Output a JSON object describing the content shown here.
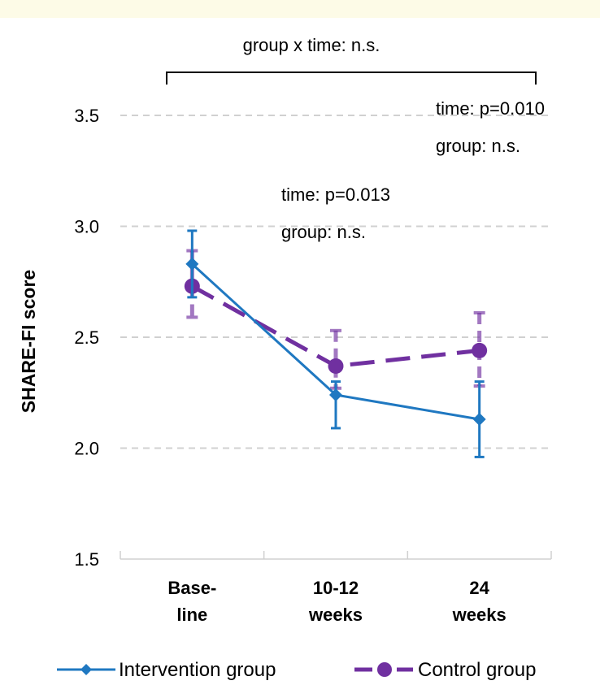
{
  "chart_data": {
    "type": "line",
    "title": "",
    "xlabel": "",
    "ylabel": "SHARE-FI score",
    "categories": [
      [
        "Base-",
        "line"
      ],
      [
        "10-12",
        "weeks"
      ],
      [
        "24",
        "weeks"
      ]
    ],
    "ylim": [
      1.5,
      3.5
    ],
    "yticks": [
      "1.5",
      "2.0",
      "2.5",
      "3.0",
      "3.5"
    ],
    "ytick_values": [
      1.5,
      2.0,
      2.5,
      3.0,
      3.5
    ],
    "grid": true,
    "legend_position": "bottom",
    "series": [
      {
        "name": "Intervention group",
        "values": [
          2.83,
          2.24,
          2.13
        ],
        "error_low": [
          2.68,
          2.09,
          1.96
        ],
        "error_high": [
          2.98,
          2.3,
          2.3
        ],
        "color": "#1f78c1",
        "marker": "diamond",
        "line_style": "solid"
      },
      {
        "name": "Control group",
        "values": [
          2.73,
          2.37,
          2.44
        ],
        "error_low": [
          2.59,
          2.27,
          2.28
        ],
        "error_high": [
          2.89,
          2.53,
          2.61
        ],
        "color": "#7030a0",
        "marker": "circle",
        "line_style": "dashed"
      }
    ],
    "annotations": {
      "bracket": "group x time: n.s.",
      "mid_time": "time: p=0.013",
      "mid_group": "group: n.s.",
      "end_time": "time: p=0.010",
      "end_group": "group: n.s."
    }
  }
}
